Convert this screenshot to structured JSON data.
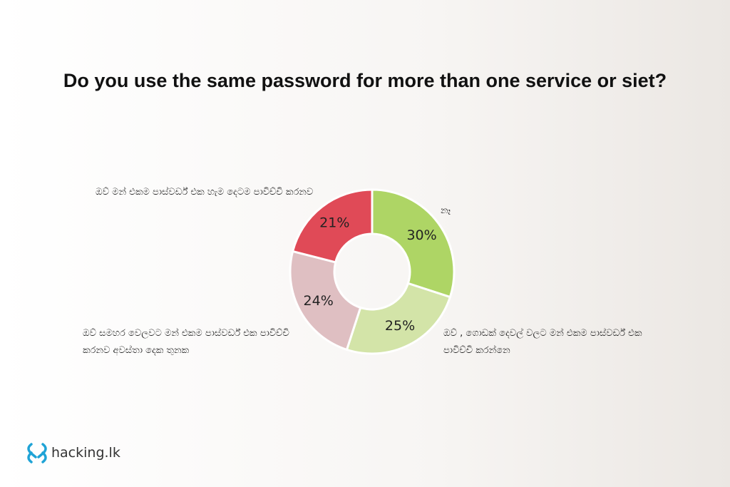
{
  "chart_data": {
    "type": "donut",
    "title": "Do you use the same password for more than one service or siet?",
    "categories": [
      "නෑ",
      "ඔව් , ගොඩක් දෙවල් වලට මන් එකම පාස්වර්ඩ් එක පාවිච්චි කරන්නෙ",
      "ඔව් සමහර වෙලවට මන් එකම පාස්වර්ඩ් එක පාවිච්චි කරනව අවස්තා දෙක තුනක",
      "ඔව් මන් එකම පාස්වර්ඩ් එක හැම දෙටම පාවිච්චි කරනව"
    ],
    "values": [
      30,
      25,
      24,
      21
    ],
    "value_labels": [
      "30%",
      "25%",
      "24%",
      "21%"
    ],
    "colors": [
      "#aed565",
      "#d3e4a8",
      "#dfbfc2",
      "#e04a57"
    ]
  },
  "brand": "hacking.lk"
}
